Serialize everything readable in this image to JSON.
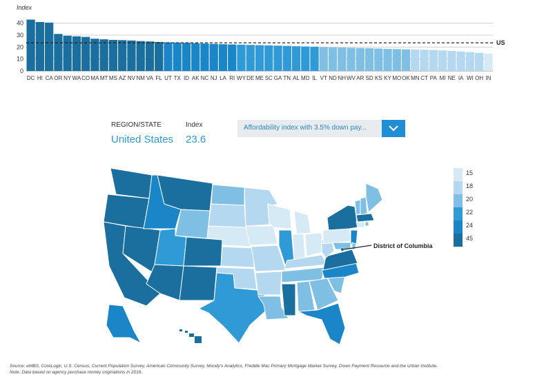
{
  "chart_data": {
    "type": "bar",
    "ylabel": "Index",
    "ylim": [
      0,
      45
    ],
    "yticks": [
      0,
      10,
      20,
      30,
      40
    ],
    "reference_line": {
      "label": "US",
      "value": 23.6
    },
    "categories": [
      "DC",
      "HI",
      "CA",
      "OR",
      "NY",
      "WA",
      "CO",
      "MA",
      "MT",
      "MS",
      "AZ",
      "NV",
      "NM",
      "VA",
      "FL",
      "UT",
      "TX",
      "ID",
      "AK",
      "NC",
      "NJ",
      "LA",
      "RI",
      "WY",
      "DE",
      "ME",
      "SC",
      "GA",
      "TN",
      "AL",
      "MD",
      "IL",
      "VT",
      "ND",
      "NH",
      "WV",
      "AR",
      "SD",
      "KS",
      "KY",
      "MO",
      "OK",
      "MN",
      "CT",
      "PA",
      "MI",
      "NE",
      "IA",
      "WI",
      "OH",
      "IN"
    ],
    "values": [
      43,
      41,
      40.5,
      31,
      29.5,
      29,
      28.5,
      27,
      26.5,
      26,
      25.8,
      25.5,
      25,
      24.7,
      24.3,
      24,
      23.8,
      23.6,
      23.3,
      23,
      22.7,
      22.4,
      22.2,
      22,
      21.8,
      21.6,
      21.4,
      21.2,
      21,
      20.7,
      20.5,
      20.3,
      20,
      19.8,
      19.6,
      19.4,
      19.2,
      19,
      18.8,
      18.5,
      18.3,
      18.1,
      18,
      17.8,
      17.6,
      17.2,
      16.8,
      16.3,
      15.8,
      15.2,
      14.6
    ],
    "scale_bins": [
      15,
      18,
      20,
      22,
      24,
      45
    ],
    "bin_colors": [
      "#d6eaf6",
      "#b3d8ef",
      "#7fbfe3",
      "#2f9ad6",
      "#1b86c7",
      "#1a6f9e"
    ]
  },
  "readout": {
    "region_header": "REGION/STATE",
    "index_header": "Index",
    "region_value": "United States",
    "index_value": "23.6"
  },
  "dropdown": {
    "label": "Affordability index with 3.5% down pay...",
    "icon": "chevron-down-icon"
  },
  "map": {
    "callout": "District of Columbia"
  },
  "legend": {
    "labels": [
      "15",
      "18",
      "20",
      "22",
      "24",
      "45"
    ]
  },
  "footnotes": {
    "source": "Source: eMBS, CoreLogic, U.S. Census, Current Population Survey, American Community Survey, Moody's Analytics, Freddie Mac Primary Mortgage Market Survey, Down Payment Resource and the Urban Institute.",
    "note": "Note: Data based on agency purchase money originations in 2016."
  }
}
